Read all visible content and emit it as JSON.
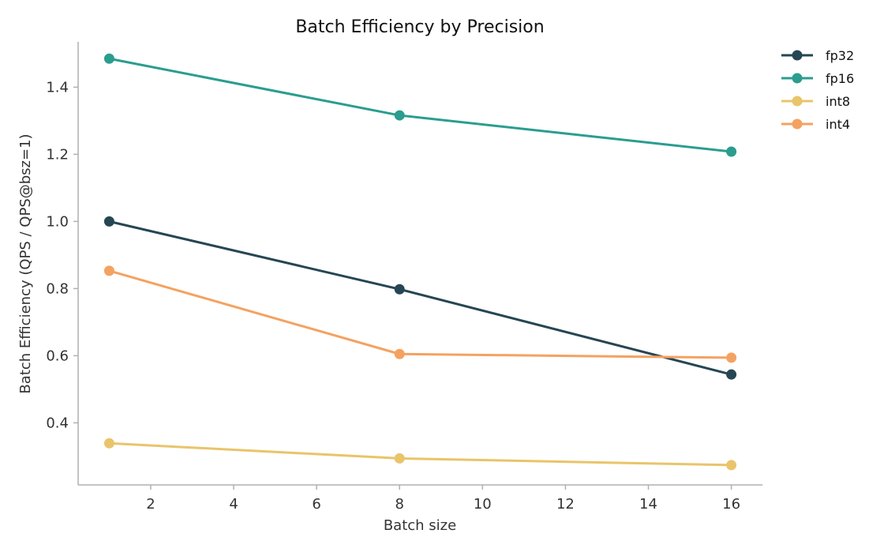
{
  "chart_data": {
    "type": "line",
    "title": "Batch Efficiency by Precision",
    "xlabel": "Batch size",
    "ylabel": "Batch Efficiency (QPS / QPS@bsz=1)",
    "x": [
      1,
      8,
      16
    ],
    "xlim": [
      0.25,
      16.75
    ],
    "ylim": [
      0.215,
      1.535
    ],
    "xticks": [
      2,
      4,
      6,
      8,
      10,
      12,
      14,
      16
    ],
    "yticks": [
      0.4,
      0.6,
      0.8,
      1.0,
      1.2,
      1.4
    ],
    "grid": false,
    "legend_position": "top-right outside",
    "series": [
      {
        "name": "fp32",
        "color": "#264653",
        "values": [
          1.0,
          0.798,
          0.544
        ]
      },
      {
        "name": "fp16",
        "color": "#2a9d8f",
        "values": [
          1.485,
          1.316,
          1.208
        ]
      },
      {
        "name": "int8",
        "color": "#e9c46a",
        "values": [
          0.339,
          0.294,
          0.274
        ]
      },
      {
        "name": "int4",
        "color": "#f4a261",
        "values": [
          0.853,
          0.605,
          0.594
        ]
      }
    ]
  }
}
